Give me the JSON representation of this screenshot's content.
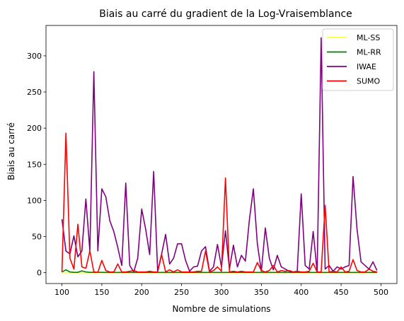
{
  "chart_data": {
    "type": "line",
    "title": "Biais au carré du gradient de la Log-Vraisemblance",
    "xlabel": "Nombre de simulations",
    "ylabel": "Biais au carré",
    "xlim": [
      80,
      520
    ],
    "ylim": [
      -15,
      342
    ],
    "xticks": [
      100,
      150,
      200,
      250,
      300,
      350,
      400,
      450,
      500
    ],
    "yticks": [
      0,
      50,
      100,
      150,
      200,
      250,
      300
    ],
    "legend_position": "top-right",
    "grid": false,
    "x": [
      100,
      105,
      110,
      115,
      120,
      125,
      130,
      135,
      140,
      145,
      150,
      155,
      160,
      165,
      170,
      175,
      180,
      185,
      190,
      195,
      200,
      205,
      210,
      215,
      220,
      225,
      230,
      235,
      240,
      245,
      250,
      255,
      260,
      265,
      270,
      275,
      280,
      285,
      290,
      295,
      300,
      305,
      310,
      315,
      320,
      325,
      330,
      335,
      340,
      345,
      350,
      355,
      360,
      365,
      370,
      375,
      380,
      385,
      390,
      395,
      400,
      405,
      410,
      415,
      420,
      425,
      430,
      435,
      440,
      445,
      450,
      455,
      460,
      465,
      470,
      475,
      480,
      485,
      490,
      495
    ],
    "series": [
      {
        "name": "ML-SS",
        "color": "#ffff33",
        "values": [
          0,
          0,
          0,
          0,
          0,
          0,
          0,
          0,
          0,
          0,
          0,
          0,
          0,
          0,
          0,
          0,
          0,
          0,
          0,
          0,
          0,
          0,
          0,
          0,
          0,
          0,
          0,
          0,
          0,
          0,
          0,
          0,
          0,
          0,
          0,
          0,
          0,
          0,
          0,
          0,
          0,
          0,
          0,
          0,
          0,
          0,
          0,
          0,
          0,
          0,
          0,
          0,
          0,
          0,
          0,
          0,
          0,
          0,
          0,
          0,
          0,
          0,
          0,
          0,
          0,
          0,
          0,
          0,
          0,
          0,
          0,
          0,
          0,
          0,
          0,
          0,
          0,
          0,
          0,
          0
        ]
      },
      {
        "name": "ML-RR",
        "color": "#008000",
        "values": [
          1,
          4,
          1,
          0.5,
          0.5,
          2.5,
          1,
          0.5,
          0.5,
          0.5,
          0.5,
          0.3,
          0.3,
          0.3,
          0.3,
          0.3,
          0.3,
          0.3,
          0.3,
          0.3,
          0.3,
          0.3,
          0.3,
          0.3,
          0.3,
          0.3,
          0.3,
          0.3,
          0.3,
          0.3,
          0.3,
          0.3,
          0.3,
          0.3,
          0.3,
          0.3,
          0.3,
          0.3,
          0.3,
          0.3,
          0.3,
          0.3,
          0.3,
          0.3,
          0.3,
          0.3,
          0.3,
          0.3,
          0.3,
          0.3,
          0.3,
          0.3,
          0.3,
          0.3,
          0.3,
          0.3,
          0.3,
          0.3,
          0.3,
          0.3,
          0.3,
          0.3,
          0.3,
          0.3,
          0.3,
          0.3,
          0.3,
          0.3,
          0.3,
          0.3,
          0.3,
          0.3,
          0.3,
          0.3,
          0.3,
          0.3,
          0.3,
          0.3,
          0.3,
          0.3
        ]
      },
      {
        "name": "IWAE",
        "color": "#800080",
        "values": [
          74,
          30,
          26,
          51,
          22,
          30,
          102,
          30,
          278,
          30,
          116,
          105,
          72,
          57,
          35,
          10,
          124,
          10,
          1,
          20,
          88,
          60,
          25,
          140,
          2,
          26,
          53,
          12,
          20,
          40,
          40,
          17,
          2,
          8,
          9,
          30,
          36,
          2,
          8,
          39,
          8,
          58,
          5,
          38,
          8,
          24,
          16,
          73,
          116,
          40,
          2,
          62,
          20,
          4,
          24,
          8,
          5,
          2,
          1,
          2,
          109,
          10,
          5,
          57,
          1,
          325,
          5,
          10,
          2,
          8,
          5,
          8,
          10,
          133,
          60,
          15,
          10,
          5,
          15,
          3
        ]
      },
      {
        "name": "SUMO",
        "color": "#ff0000",
        "values": [
          1,
          193,
          20,
          5,
          67,
          8,
          6,
          30,
          1,
          0.5,
          17,
          3,
          1,
          1,
          12,
          1,
          1,
          2,
          3,
          1,
          1,
          1,
          2,
          1,
          1,
          25,
          1,
          4,
          1,
          4,
          1,
          1,
          1,
          1,
          2,
          2,
          30,
          1,
          3,
          8,
          2,
          131,
          1,
          2,
          1,
          2,
          1,
          1,
          1,
          14,
          3,
          1,
          3,
          10,
          1,
          3,
          2,
          3,
          1,
          2,
          1,
          1,
          2,
          13,
          1,
          1,
          93,
          1,
          2,
          1,
          8,
          1,
          2,
          18,
          3,
          1,
          1,
          5,
          2,
          1
        ]
      }
    ]
  }
}
